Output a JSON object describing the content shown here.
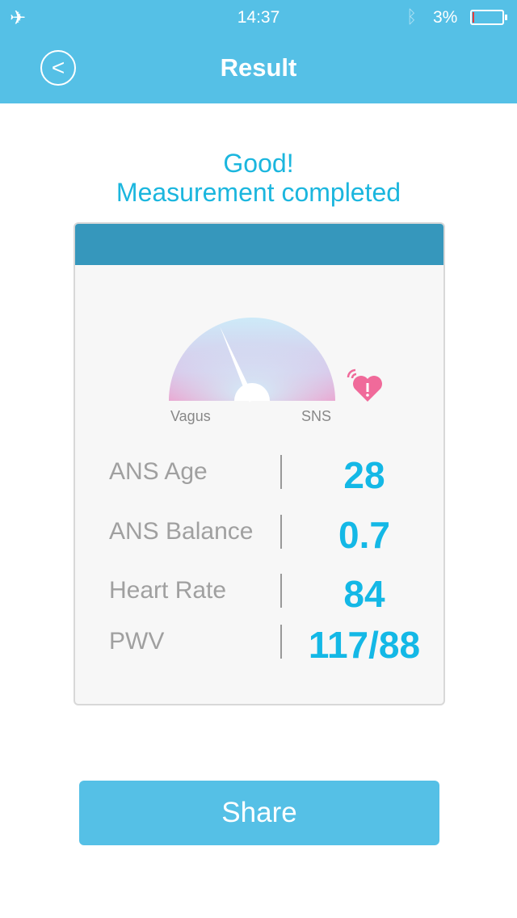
{
  "status_bar": {
    "time": "14:37",
    "battery": "3%",
    "battery_level": 0.03,
    "icons": [
      "airplane-icon",
      "bluetooth-icon",
      "battery-icon"
    ]
  },
  "nav": {
    "title": "Result",
    "back_icon": "chevron-left-circle-icon"
  },
  "message": {
    "line1": "Good!",
    "line2": "Measurement completed"
  },
  "gauge": {
    "left_label": "Vagus",
    "right_label": "SNS",
    "value_fraction": 0.37,
    "alert_icon": "heart-alert-icon"
  },
  "metrics": [
    {
      "label": "ANS Age",
      "value": "28"
    },
    {
      "label": "ANS Balance",
      "value": "0.7"
    },
    {
      "label": "Heart Rate",
      "value": "84"
    },
    {
      "label": "PWV",
      "value": "117/88"
    }
  ],
  "share_label": "Share",
  "colors": {
    "primary": "#55c0e6",
    "card_header": "#3697bc",
    "value": "#14b8e6",
    "alert": "#f06a9a"
  }
}
